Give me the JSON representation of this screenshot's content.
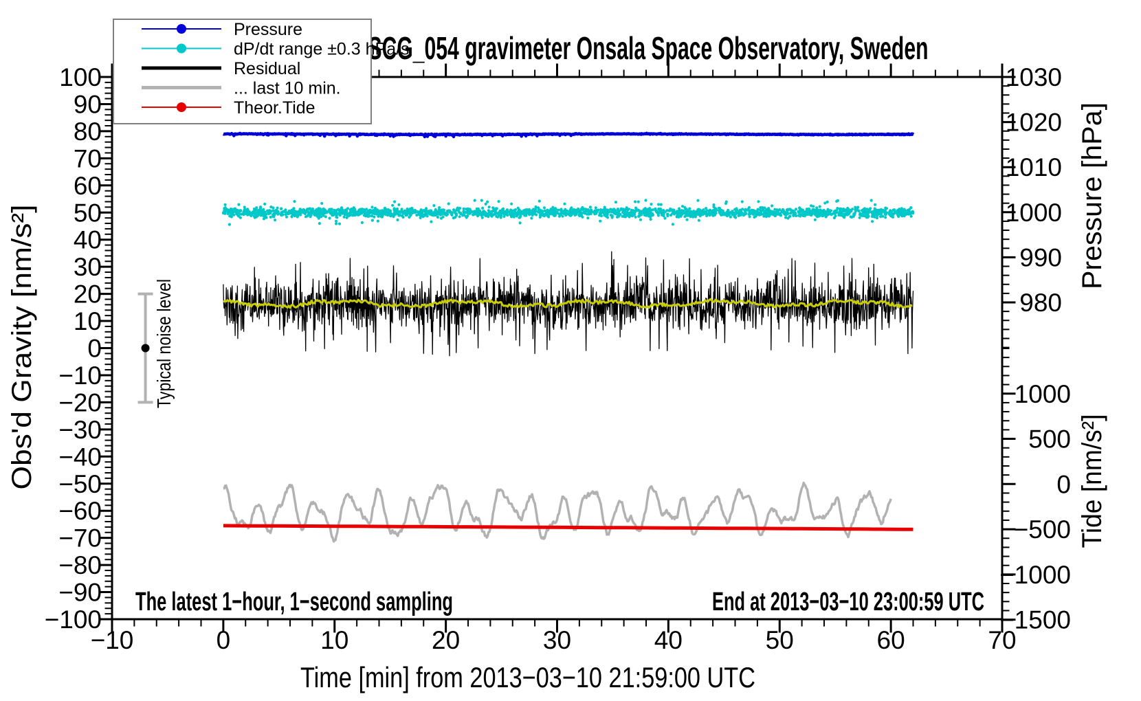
{
  "title": "SCG_054 gravimeter Onsala Space Observatory, Sweden",
  "annotations": {
    "bottom_left": "The latest 1−hour, 1−second sampling",
    "bottom_right": "End at 2013−03−10 23:00:59 UTC",
    "noise_bar_label": "Typical noise level"
  },
  "axes": {
    "x": {
      "label": "Time [min] from 2013−03−10 21:59:00 UTC",
      "min": -10,
      "max": 70,
      "major_step": 10,
      "minor_step": 2,
      "tick_values": [
        -10,
        0,
        10,
        20,
        30,
        40,
        50,
        60,
        70
      ],
      "tick_labels": [
        "−10",
        "0",
        "10",
        "20",
        "30",
        "40",
        "50",
        "60",
        "70"
      ]
    },
    "y_left": {
      "label": "Obs'd Gravity [nm/s²]",
      "min": -100,
      "max": 100,
      "major_step": 10,
      "minor_step": 2,
      "tick_values": [
        100,
        90,
        80,
        70,
        60,
        50,
        40,
        30,
        20,
        10,
        0,
        -10,
        -20,
        -30,
        -40,
        -50,
        -60,
        -70,
        -80,
        -90,
        -100
      ],
      "tick_labels": [
        "100",
        "90",
        "80",
        "70",
        "60",
        "50",
        "40",
        "30",
        "20",
        "10",
        "0",
        "−10",
        "−20",
        "−30",
        "−40",
        "−50",
        "−60",
        "−70",
        "−80",
        "−90",
        "−100"
      ]
    },
    "y_right_pressure": {
      "label": "Pressure [hPa]",
      "tick_values": [
        1030,
        1020,
        1010,
        1000,
        990,
        980
      ],
      "tick_labels": [
        "1030",
        "1020",
        "1010",
        "1000",
        "990",
        "980"
      ],
      "minor_step_hPa": 2,
      "minor_range": [
        970,
        1030
      ]
    },
    "y_right_tide": {
      "label": "Tide [nm/s²]",
      "tick_values": [
        1000,
        500,
        0,
        -500,
        -1000,
        -1500
      ],
      "tick_labels": [
        "1000",
        "500",
        "0",
        "−500",
        "−1000",
        "−1500"
      ],
      "minor_step": 100,
      "minor_range": [
        -1500,
        1500
      ]
    }
  },
  "legend": {
    "border_color": "#808080",
    "items": [
      {
        "label": "Pressure",
        "color": "#0000d9",
        "dot": true,
        "line_width": 2
      },
      {
        "label": "dP/dt range ±0.3 hPa/s",
        "color": "#00c8c8",
        "dot": true,
        "line_width": 2
      },
      {
        "label": "Residual",
        "color": "#000000",
        "dot": false,
        "line_width": 5
      },
      {
        "label": "... last 10 min.",
        "color": "#b2b2b2",
        "dot": false,
        "line_width": 5
      },
      {
        "label": "Theor.Tide",
        "color": "#e80000",
        "dot": true,
        "line_width": 2
      }
    ]
  },
  "chart_data": {
    "type": "line",
    "title": "SCG_054 gravimeter Onsala Space Observatory, Sweden",
    "xlabel": "Time [min] from 2013−03−10 21:59:00 UTC",
    "x_range": [
      -10,
      70
    ],
    "gravity_axis_range": [
      -100,
      100
    ],
    "pressure_axis_ticks": [
      1030,
      1020,
      1010,
      1000,
      990,
      980
    ],
    "tide_axis_ticks": [
      1000,
      500,
      0,
      -500,
      -1000,
      -1500
    ],
    "grid": false,
    "legend_position": "top-left",
    "series": [
      {
        "name": "Pressure",
        "type": "line",
        "axis": "pressure",
        "color": "#0000d9",
        "x_min": 0,
        "x_max": 62,
        "mean_hPa": 1017.3,
        "noise_sd_hPa": 0.05,
        "dip_fraction_first_half": 0.06,
        "line_width": 4.5
      },
      {
        "name": "dP/dt range ±0.3 hPa/s",
        "type": "scatter",
        "axis": "gravity",
        "color": "#00c8c8",
        "x_min": 0,
        "x_max": 62,
        "center_level": 50,
        "spread_sd": 0.8,
        "outlier_fraction": 0.03,
        "outlier_max": 4.5,
        "n_points": 2200,
        "dot_radius": 2.1
      },
      {
        "name": "Residual",
        "type": "line",
        "axis": "gravity",
        "color": "#000000",
        "x_min": 0,
        "x_max": 62,
        "mean": 16.3,
        "noise_sd": 4.3,
        "spike_fraction": 0.05,
        "spike_max": 19,
        "min": -6,
        "max": 36,
        "line_width": 1.3
      },
      {
        "name": "Residual smoothed",
        "type": "line",
        "axis": "gravity",
        "color": "#c9cc00",
        "x_min": 0,
        "x_max": 62,
        "mean": 16.45,
        "wiggle_amp": 1.2,
        "line_width": 3
      },
      {
        "name": "... last 10 min.",
        "type": "line",
        "axis": "gravity",
        "color": "#b2b2b2",
        "x_min": 0,
        "x_max": 60,
        "mean": -60.5,
        "osc_amp": 8,
        "min": -76,
        "max": -45.5,
        "line_width": 3.5
      },
      {
        "name": "Theor.Tide",
        "type": "line",
        "axis": "tide",
        "color": "#e80000",
        "x_min": 0,
        "x_max": 62,
        "start_nms2": -461,
        "end_nms2": -501,
        "line_width": 5
      }
    ],
    "noise_bar": {
      "x_at_min": -7,
      "center": 0,
      "half_range": 20,
      "color": "#b2b2b2"
    }
  }
}
